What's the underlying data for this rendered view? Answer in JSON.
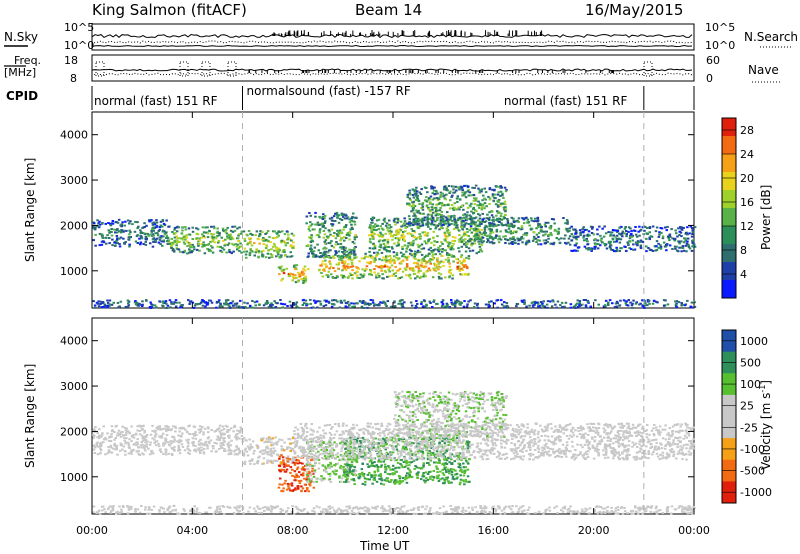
{
  "header": {
    "station": "King Salmon (fitACF)",
    "beam": "Beam 14",
    "date": "16/May/2015"
  },
  "status_panels": {
    "nsky_label": "N.Sky",
    "nsearch_label": "N.Search",
    "freq_label": "Freq.",
    "freq_unit": "[MHz]",
    "nave_label": "Nave",
    "cpid_label": "CPID",
    "sky_ticks": [
      "10^5",
      "10^0"
    ],
    "search_ticks": [
      "10^5",
      "10^0"
    ],
    "freq_ticks": [
      "18",
      "8"
    ],
    "nave_ticks": [
      "60",
      "0"
    ],
    "cpid_segments": [
      {
        "label": "normal (fast) 151 RF",
        "start": 0,
        "end": 6
      },
      {
        "label": "normalsound (fast) -157 RF",
        "start": 6,
        "end": 22
      },
      {
        "label": "normal (fast) 151 RF",
        "start": 22,
        "end": 24
      }
    ]
  },
  "chart_data": [
    {
      "type": "heatmap",
      "title": "",
      "xlabel": "Time UT",
      "ylabel": "Slant Range [km]",
      "xlim": [
        0,
        24
      ],
      "ylim": [
        180,
        4500
      ],
      "x_ticks": [
        "00:00",
        "04:00",
        "08:00",
        "12:00",
        "16:00",
        "20:00",
        "00:00"
      ],
      "y_ticks": [
        "1000",
        "2000",
        "3000",
        "4000"
      ],
      "colorbar": {
        "label": "Power [dB]",
        "ticks": [
          "28",
          "24",
          "20",
          "16",
          "12",
          "8",
          "4"
        ],
        "range": [
          0,
          30
        ],
        "colors": [
          "#0a1bff",
          "#1f3fa8",
          "#2e6e6e",
          "#2c8f5a",
          "#58b248",
          "#9ed12c",
          "#e8d21c",
          "#f5a017",
          "#f26b12",
          "#e0200c"
        ]
      },
      "bands": [
        {
          "t0": 0.0,
          "t1": 3.0,
          "r0": 1550,
          "r1": 2150,
          "level": 0.3
        },
        {
          "t0": 3.0,
          "t1": 6.0,
          "r0": 1400,
          "r1": 2000,
          "level": 0.55
        },
        {
          "t0": 6.0,
          "t1": 8.0,
          "r0": 1300,
          "r1": 1900,
          "level": 0.65
        },
        {
          "t0": 7.4,
          "t1": 8.6,
          "r0": 750,
          "r1": 1150,
          "level": 0.8
        },
        {
          "t0": 8.5,
          "t1": 10.5,
          "r0": 1300,
          "r1": 2300,
          "level": 0.45
        },
        {
          "t0": 9.0,
          "t1": 15.0,
          "r0": 850,
          "r1": 1400,
          "level": 0.75
        },
        {
          "t0": 11.0,
          "t1": 15.5,
          "r0": 1400,
          "r1": 2200,
          "level": 0.55
        },
        {
          "t0": 12.5,
          "t1": 16.5,
          "r0": 2000,
          "r1": 2900,
          "level": 0.45
        },
        {
          "t0": 15.0,
          "t1": 19.0,
          "r0": 1600,
          "r1": 2200,
          "level": 0.4
        },
        {
          "t0": 19.0,
          "t1": 24.0,
          "r0": 1450,
          "r1": 2000,
          "level": 0.3
        },
        {
          "t0": 0.0,
          "t1": 24.0,
          "r0": 200,
          "r1": 380,
          "level": 0.25
        }
      ]
    },
    {
      "type": "heatmap",
      "title": "",
      "xlabel": "Time UT",
      "ylabel": "Slant Range [km]",
      "xlim": [
        0,
        24
      ],
      "ylim": [
        180,
        4500
      ],
      "x_ticks": [
        "00:00",
        "04:00",
        "08:00",
        "12:00",
        "16:00",
        "20:00",
        "00:00"
      ],
      "y_ticks": [
        "1000",
        "2000",
        "3000",
        "4000"
      ],
      "colorbar": {
        "label": "Velocity [m s-1]",
        "ticks": [
          "1000",
          "500",
          "100",
          "25",
          "-25",
          "-100",
          "-500",
          "-1000"
        ],
        "range": [
          -1000,
          1000
        ],
        "colors": [
          "#e0200c",
          "#f26b12",
          "#f5a017",
          "#c8c8c8",
          "#c8c8c8",
          "#58c030",
          "#2e8f5a",
          "#1f4fa8"
        ]
      },
      "bands": [
        {
          "t0": 0.0,
          "t1": 6.0,
          "r0": 1500,
          "r1": 2150,
          "level": 0.5
        },
        {
          "t0": 6.0,
          "t1": 8.0,
          "r0": 1300,
          "r1": 1900,
          "level": 0.45
        },
        {
          "t0": 7.4,
          "t1": 8.8,
          "r0": 700,
          "r1": 1500,
          "level": 0.15
        },
        {
          "t0": 8.5,
          "t1": 10.5,
          "r0": 900,
          "r1": 1800,
          "level": 0.62
        },
        {
          "t0": 10.0,
          "t1": 15.0,
          "r0": 850,
          "r1": 1900,
          "level": 0.75
        },
        {
          "t0": 12.0,
          "t1": 16.5,
          "r0": 1900,
          "r1": 2900,
          "level": 0.6
        },
        {
          "t0": 8.0,
          "t1": 24.0,
          "r0": 1400,
          "r1": 2200,
          "level": 0.5
        },
        {
          "t0": 0.0,
          "t1": 24.0,
          "r0": 200,
          "r1": 380,
          "level": 0.5
        }
      ]
    }
  ]
}
